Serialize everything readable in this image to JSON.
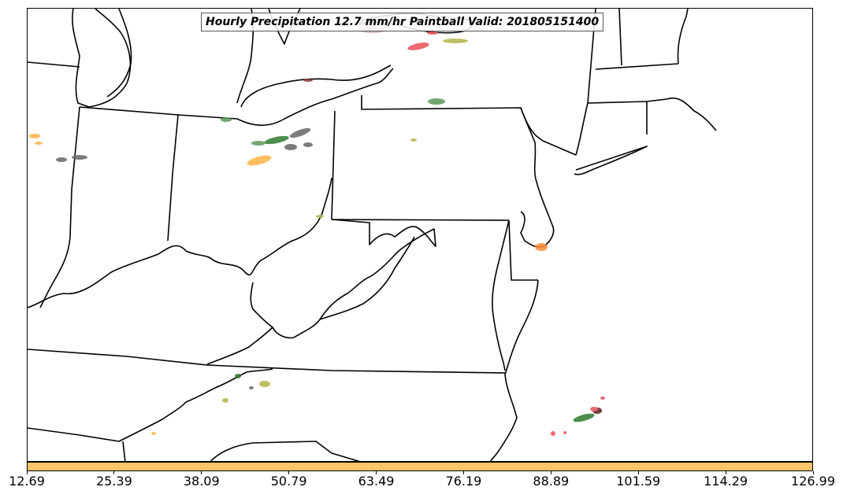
{
  "title": "Hourly Precipitation 12.7 mm/hr Paintball Valid: 201805151400",
  "colorbar": {
    "color": "#ffc56a",
    "ticks": [
      "12.69",
      "25.39",
      "38.09",
      "50.79",
      "63.49",
      "76.19",
      "88.89",
      "101.59",
      "114.29",
      "126.99"
    ]
  },
  "colors": {
    "paintball_dark_green": "#2f7a2f",
    "paintball_green": "#5a9a5a",
    "paintball_gray": "#666666",
    "paintball_orange": "#ffb347",
    "paintball_red": "#e8505a",
    "paintball_olive": "#b5b54a",
    "paintball_brown": "#8b3a3a"
  }
}
